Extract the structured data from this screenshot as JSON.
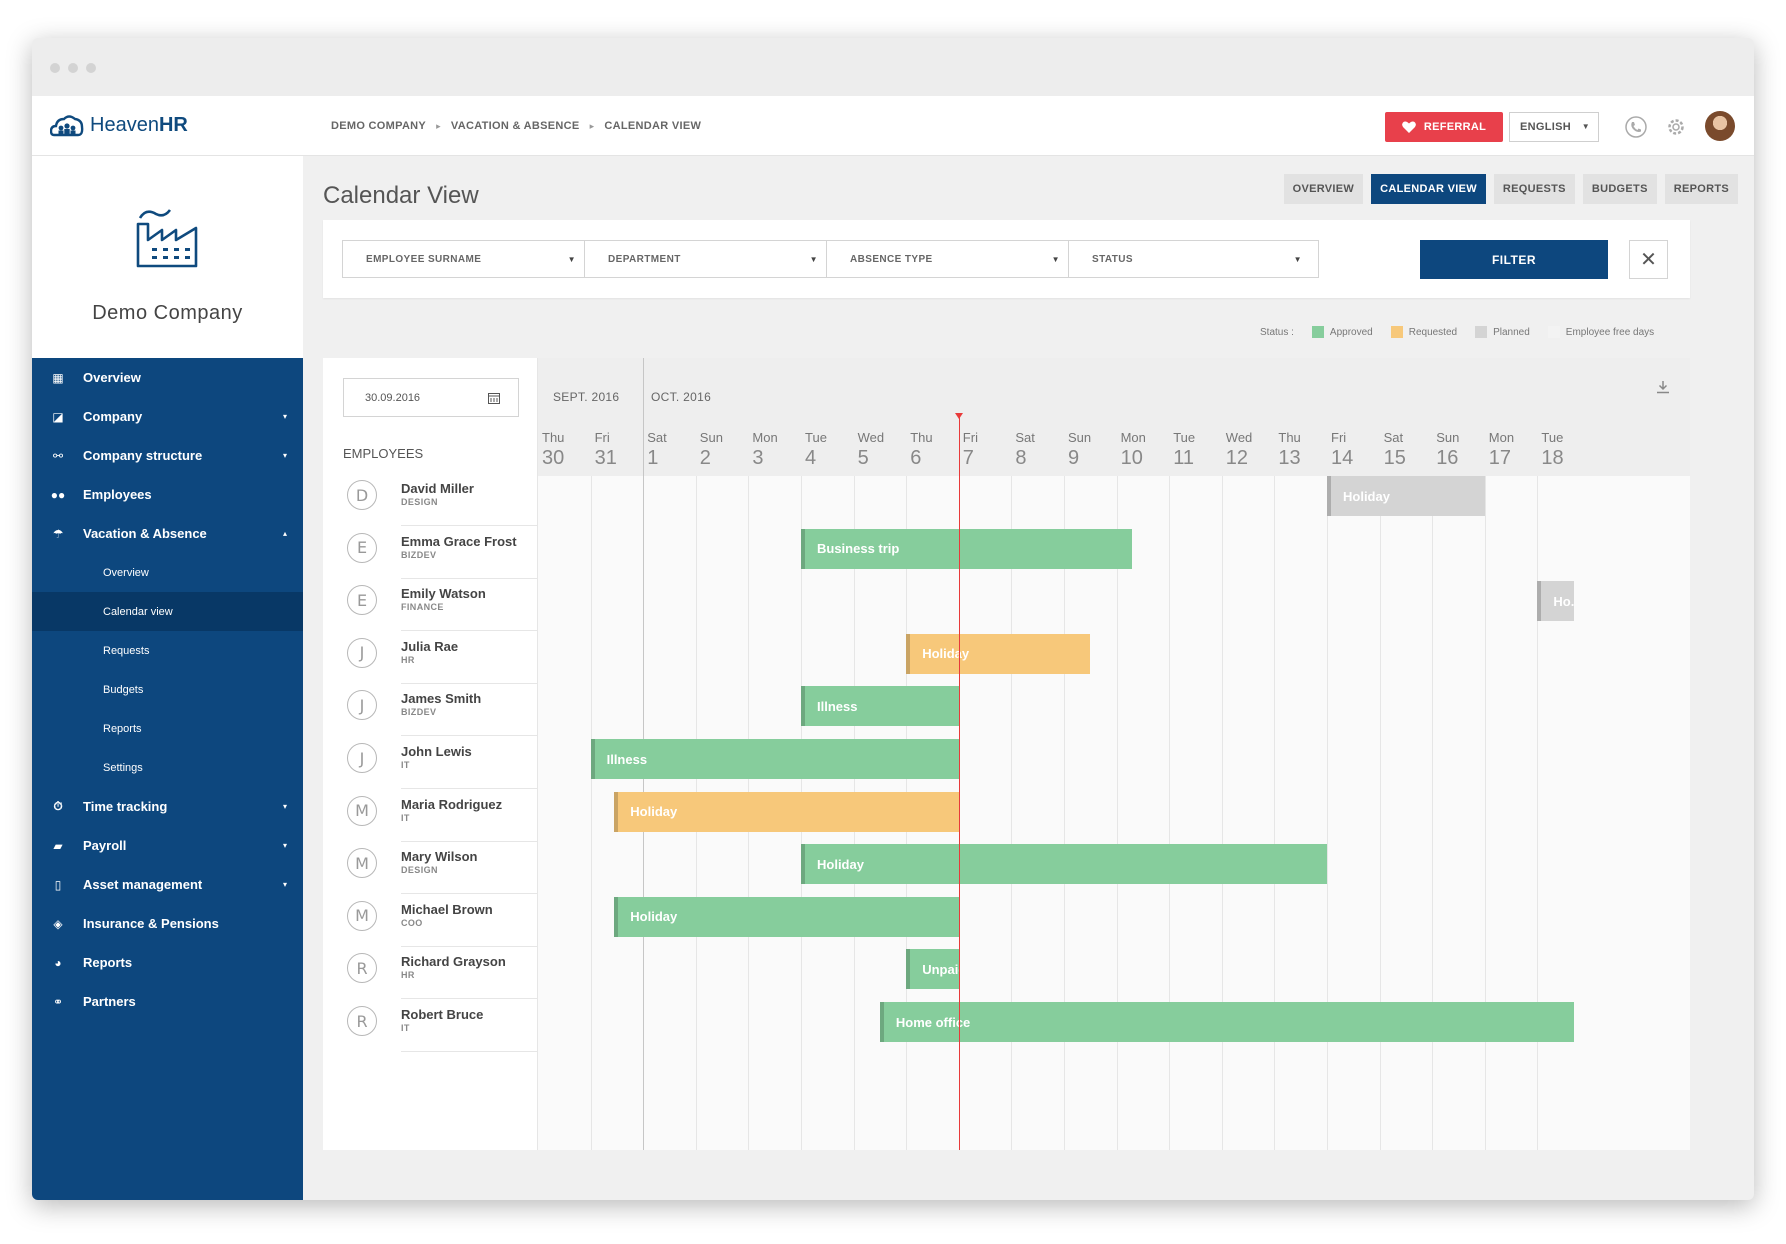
{
  "app": {
    "brand_light": "Heaven",
    "brand_bold": "HR"
  },
  "breadcrumb": [
    "DEMO COMPANY",
    "VACATION & ABSENCE",
    "CALENDAR VIEW"
  ],
  "topbar": {
    "referral_label": "REFERRAL",
    "language": "ENGLISH",
    "icons": [
      "phone-icon",
      "gear-icon",
      "avatar"
    ]
  },
  "company": {
    "name": "Demo Company",
    "icon": "factory-icon"
  },
  "nav": {
    "items": [
      {
        "label": "Overview",
        "icon": "grid-icon",
        "caret": ""
      },
      {
        "label": "Company",
        "icon": "chart-icon",
        "caret": "▾"
      },
      {
        "label": "Company structure",
        "icon": "sitemap-icon",
        "caret": "▾"
      },
      {
        "label": "Employees",
        "icon": "users-icon",
        "caret": ""
      },
      {
        "label": "Vacation & Absence",
        "icon": "umbrella-icon",
        "caret": "▴"
      }
    ],
    "sub_items": [
      "Overview",
      "Calendar view",
      "Requests",
      "Budgets",
      "Reports",
      "Settings"
    ],
    "active_sub": "Calendar view",
    "items_after": [
      {
        "label": "Time tracking",
        "icon": "stopwatch-icon",
        "caret": "▾"
      },
      {
        "label": "Payroll",
        "icon": "wallet-icon",
        "caret": "▾"
      },
      {
        "label": "Asset management",
        "icon": "phone-device-icon",
        "caret": "▾"
      },
      {
        "label": "Insurance & Pensions",
        "icon": "shield-icon",
        "caret": ""
      },
      {
        "label": "Reports",
        "icon": "pie-chart-icon",
        "caret": ""
      },
      {
        "label": "Partners",
        "icon": "handshake-icon",
        "caret": ""
      }
    ]
  },
  "page": {
    "title": "Calendar View",
    "tabs": [
      "OVERVIEW",
      "CALENDAR VIEW",
      "REQUESTS",
      "BUDGETS",
      "REPORTS"
    ],
    "active_tab": "CALENDAR VIEW"
  },
  "filters": {
    "employee_surname": "EMPLOYEE SURNAME",
    "department": "DEPARTMENT",
    "absence_type": "ABSENCE TYPE",
    "status": "STATUS",
    "filter_label": "FILTER"
  },
  "legend": {
    "title": "Status :",
    "items": [
      {
        "label": "Approved",
        "color": "#86cd9c"
      },
      {
        "label": "Requested",
        "color": "#f7c87a"
      },
      {
        "label": "Planned",
        "color": "#d4d4d4"
      },
      {
        "label": "Employee free days",
        "color": "#f3f3f3"
      }
    ]
  },
  "calendar": {
    "date_value": "30.09.2016",
    "employees_header": "EMPLOYEES",
    "months": [
      "SEPT. 2016",
      "OCT. 2016"
    ],
    "days": [
      {
        "name": "Thu",
        "num": "30"
      },
      {
        "name": "Fri",
        "num": "31"
      },
      {
        "name": "Sat",
        "num": "1"
      },
      {
        "name": "Sun",
        "num": "2"
      },
      {
        "name": "Mon",
        "num": "3"
      },
      {
        "name": "Tue",
        "num": "4"
      },
      {
        "name": "Wed",
        "num": "5"
      },
      {
        "name": "Thu",
        "num": "6"
      },
      {
        "name": "Fri",
        "num": "7"
      },
      {
        "name": "Sat",
        "num": "8"
      },
      {
        "name": "Sun",
        "num": "9"
      },
      {
        "name": "Mon",
        "num": "10"
      },
      {
        "name": "Tue",
        "num": "11"
      },
      {
        "name": "Wed",
        "num": "12"
      },
      {
        "name": "Thu",
        "num": "13"
      },
      {
        "name": "Fri",
        "num": "14"
      },
      {
        "name": "Sat",
        "num": "15"
      },
      {
        "name": "Sun",
        "num": "16"
      },
      {
        "name": "Mon",
        "num": "17"
      },
      {
        "name": "Tue",
        "num": "18"
      }
    ],
    "employees": [
      {
        "initial": "D",
        "name": "David Miller",
        "dept": "DESIGN"
      },
      {
        "initial": "E",
        "name": "Emma Grace Frost",
        "dept": "BIZDEV"
      },
      {
        "initial": "E",
        "name": "Emily Watson",
        "dept": "FINANCE"
      },
      {
        "initial": "J",
        "name": "Julia Rae",
        "dept": "HR"
      },
      {
        "initial": "J",
        "name": "James Smith",
        "dept": "BIZDEV"
      },
      {
        "initial": "J",
        "name": "John Lewis",
        "dept": "IT"
      },
      {
        "initial": "M",
        "name": "Maria Rodriguez",
        "dept": "IT"
      },
      {
        "initial": "M",
        "name": "Mary Wilson",
        "dept": "DESIGN"
      },
      {
        "initial": "M",
        "name": "Michael Brown",
        "dept": "COO"
      },
      {
        "initial": "R",
        "name": "Richard Grayson",
        "dept": "HR"
      },
      {
        "initial": "R",
        "name": "Robert Bruce",
        "dept": "IT"
      }
    ],
    "absences": [
      {
        "row": 0,
        "label": "Holiday",
        "status": "Planned",
        "start_day": 15,
        "end_day": 18
      },
      {
        "row": 1,
        "label": "Business trip",
        "status": "Approved",
        "start_day": 5,
        "end_day": 11.3
      },
      {
        "row": 2,
        "label": "Ho...",
        "status": "Planned",
        "start_day": 19,
        "end_day": 19.7
      },
      {
        "row": 3,
        "label": "Holiday",
        "status": "Requested",
        "start_day": 7,
        "end_day": 10.5
      },
      {
        "row": 4,
        "label": "Illness",
        "status": "Approved",
        "start_day": 5,
        "end_day": 8
      },
      {
        "row": 5,
        "label": "Illness",
        "status": "Approved",
        "start_day": 1,
        "end_day": 8
      },
      {
        "row": 6,
        "label": "Holiday",
        "status": "Requested",
        "start_day": 1.45,
        "end_day": 8
      },
      {
        "row": 7,
        "label": "Holiday",
        "status": "Approved",
        "start_day": 5,
        "end_day": 15
      },
      {
        "row": 8,
        "label": "Holiday",
        "status": "Approved",
        "start_day": 1.45,
        "end_day": 8
      },
      {
        "row": 9,
        "label": "Unpaid leave",
        "status": "Approved",
        "start_day": 7,
        "end_day": 8
      },
      {
        "row": 10,
        "label": "Home office",
        "status": "Approved",
        "start_day": 6.5,
        "end_day": 19.7
      }
    ],
    "today_index": 8
  }
}
